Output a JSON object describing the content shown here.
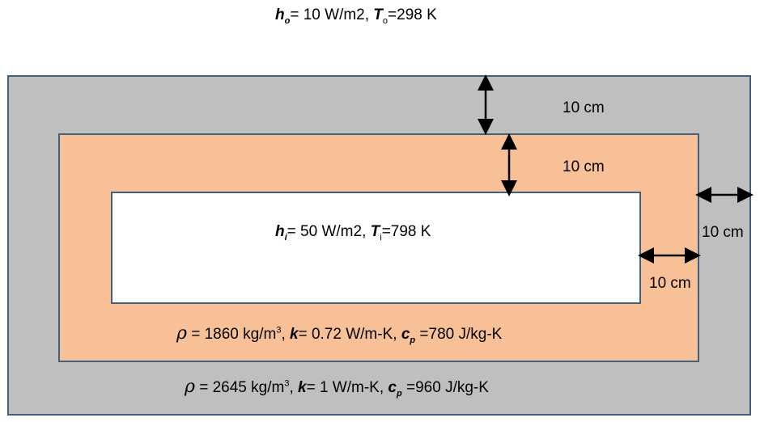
{
  "top_condition": {
    "h_symbol": "h",
    "h_sub": "o",
    "h_rest": "= 10 W/m2, ",
    "T_symbol": "T",
    "T_sub": "o",
    "T_rest": "=298 K"
  },
  "inner_condition": {
    "h_symbol": "h",
    "h_sub": "i",
    "h_rest": "= 50 W/m2, ",
    "T_symbol": "T",
    "T_sub": "i",
    "T_rest": "=798 K"
  },
  "middle_props": {
    "rho": "ρ",
    "rho_rest": " = 1860 kg/m",
    "rho_exp": "3",
    "sep1": ", ",
    "k": "k",
    "k_rest": "= 0.72 W/m-K, ",
    "cp": "c",
    "cp_sub": "p",
    "cp_rest": " =780 J/kg-K"
  },
  "outer_props": {
    "rho": "ρ",
    "rho_rest": " = 2645 kg/m",
    "rho_exp": "3",
    "sep1": ", ",
    "k": "k",
    "k_rest": "= 1 W/m-K, ",
    "cp": "c",
    "cp_sub": "p",
    "cp_rest": " =960 J/kg-K"
  },
  "dimensions": {
    "outer_top": "10 cm",
    "middle_top": "10 cm",
    "outer_right": "10 cm",
    "middle_right": "10 cm"
  },
  "colors": {
    "outer_fill": "#bfbfbf",
    "middle_fill": "#f8c097",
    "inner_fill": "#ffffff",
    "border": "#41607e"
  }
}
